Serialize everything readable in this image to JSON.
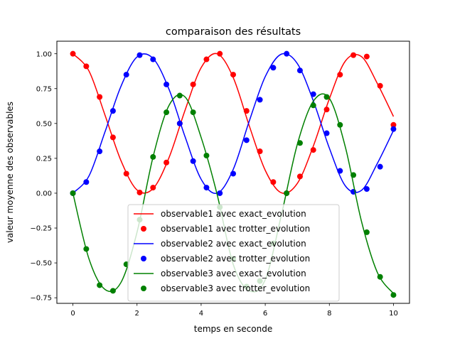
{
  "chart_data": {
    "type": "line",
    "title": "comparaison des résultats",
    "xlabel": "temps en seconde",
    "ylabel": "valeur moyenne des observables",
    "xlim": [
      -0.5,
      10.5
    ],
    "ylim": [
      -0.79,
      1.09
    ],
    "xticks": [
      0,
      2,
      4,
      6,
      8,
      10
    ],
    "yticks": [
      -0.75,
      -0.5,
      -0.25,
      0.0,
      0.25,
      0.5,
      0.75,
      1.0
    ],
    "xtick_labels": [
      "0",
      "2",
      "4",
      "6",
      "8",
      "10"
    ],
    "ytick_labels": [
      "−0.75",
      "−0.50",
      "−0.25",
      "0.00",
      "0.25",
      "0.50",
      "0.75",
      "1.00"
    ],
    "grid": false,
    "legend_position": "lower center",
    "marker_x": [
      0.0,
      0.4167,
      0.8333,
      1.25,
      1.6667,
      2.0833,
      2.5,
      2.9167,
      3.3333,
      3.75,
      4.1667,
      4.5833,
      5.0,
      5.4167,
      5.8333,
      6.25,
      6.6667,
      7.0833,
      7.5,
      7.9167,
      8.3333,
      8.75,
      9.1667,
      9.5833,
      10.0
    ],
    "series": [
      {
        "name": "observable1 avec exact_evolution",
        "kind": "line",
        "color": "#ff0000",
        "x": [
          0.0,
          0.5,
          1.0,
          1.5,
          2.0,
          2.5,
          3.0,
          3.5,
          4.0,
          4.5,
          5.0,
          5.5,
          6.0,
          6.5,
          7.0,
          7.5,
          8.0,
          8.5,
          9.0,
          9.5,
          10.0
        ],
        "values": [
          1.0,
          0.877,
          0.561,
          0.233,
          0.023,
          0.033,
          0.256,
          0.596,
          0.9,
          1.0,
          0.83,
          0.484,
          0.164,
          0.003,
          0.07,
          0.338,
          0.677,
          0.948,
          0.98,
          0.785,
          0.55
        ]
      },
      {
        "name": "observable1 avec trotter_evolution",
        "kind": "markers",
        "color": "#ff0000",
        "values": [
          1.0,
          0.91,
          0.69,
          0.4,
          0.14,
          0.005,
          0.04,
          0.22,
          0.5,
          0.78,
          0.96,
          1.0,
          0.85,
          0.59,
          0.3,
          0.08,
          0.0,
          0.12,
          0.31,
          0.6,
          0.85,
          0.99,
          0.98,
          0.77,
          0.49
        ]
      },
      {
        "name": "observable2 avec exact_evolution",
        "kind": "line",
        "color": "#0000ff",
        "x": [
          0.0,
          0.5,
          1.0,
          1.5,
          2.0,
          2.5,
          3.0,
          3.5,
          4.0,
          4.5,
          5.0,
          5.5,
          6.0,
          6.5,
          7.0,
          7.5,
          8.0,
          8.5,
          9.0,
          9.5,
          10.0
        ],
        "values": [
          0.0,
          0.123,
          0.439,
          0.767,
          0.977,
          0.967,
          0.744,
          0.404,
          0.1,
          0.0,
          0.17,
          0.516,
          0.836,
          0.997,
          0.93,
          0.662,
          0.323,
          0.052,
          0.02,
          0.215,
          0.45
        ]
      },
      {
        "name": "observable2 avec trotter_evolution",
        "kind": "markers",
        "color": "#0000ff",
        "values": [
          0.0,
          0.08,
          0.3,
          0.59,
          0.85,
          0.99,
          0.96,
          0.78,
          0.5,
          0.23,
          0.04,
          0.0,
          0.14,
          0.38,
          0.67,
          0.9,
          1.0,
          0.88,
          0.71,
          0.43,
          0.16,
          0.01,
          0.03,
          0.19,
          0.46
        ]
      },
      {
        "name": "observable3 avec exact_evolution",
        "kind": "line",
        "color": "#008000",
        "x": [
          0.0,
          0.5,
          1.0,
          1.5,
          2.0,
          2.5,
          3.0,
          3.5,
          4.0,
          4.5,
          5.0,
          5.5,
          6.0,
          6.5,
          7.0,
          7.5,
          8.0,
          8.5,
          9.0,
          9.5,
          10.0
        ],
        "values": [
          0.0,
          -0.47,
          -0.69,
          -0.64,
          -0.28,
          0.26,
          0.63,
          0.69,
          0.4,
          -0.01,
          -0.51,
          -0.7,
          -0.62,
          -0.16,
          0.35,
          0.66,
          0.68,
          0.33,
          -0.2,
          -0.57,
          -0.72
        ]
      },
      {
        "name": "observable3 avec trotter_evolution",
        "kind": "markers",
        "color": "#008000",
        "values": [
          0.0,
          -0.4,
          -0.66,
          -0.7,
          -0.51,
          -0.19,
          0.26,
          0.58,
          0.7,
          0.58,
          0.27,
          -0.1,
          -0.47,
          -0.67,
          -0.63,
          -0.36,
          0.0,
          0.36,
          0.63,
          0.69,
          0.49,
          0.13,
          -0.28,
          -0.6,
          -0.73
        ]
      }
    ]
  }
}
